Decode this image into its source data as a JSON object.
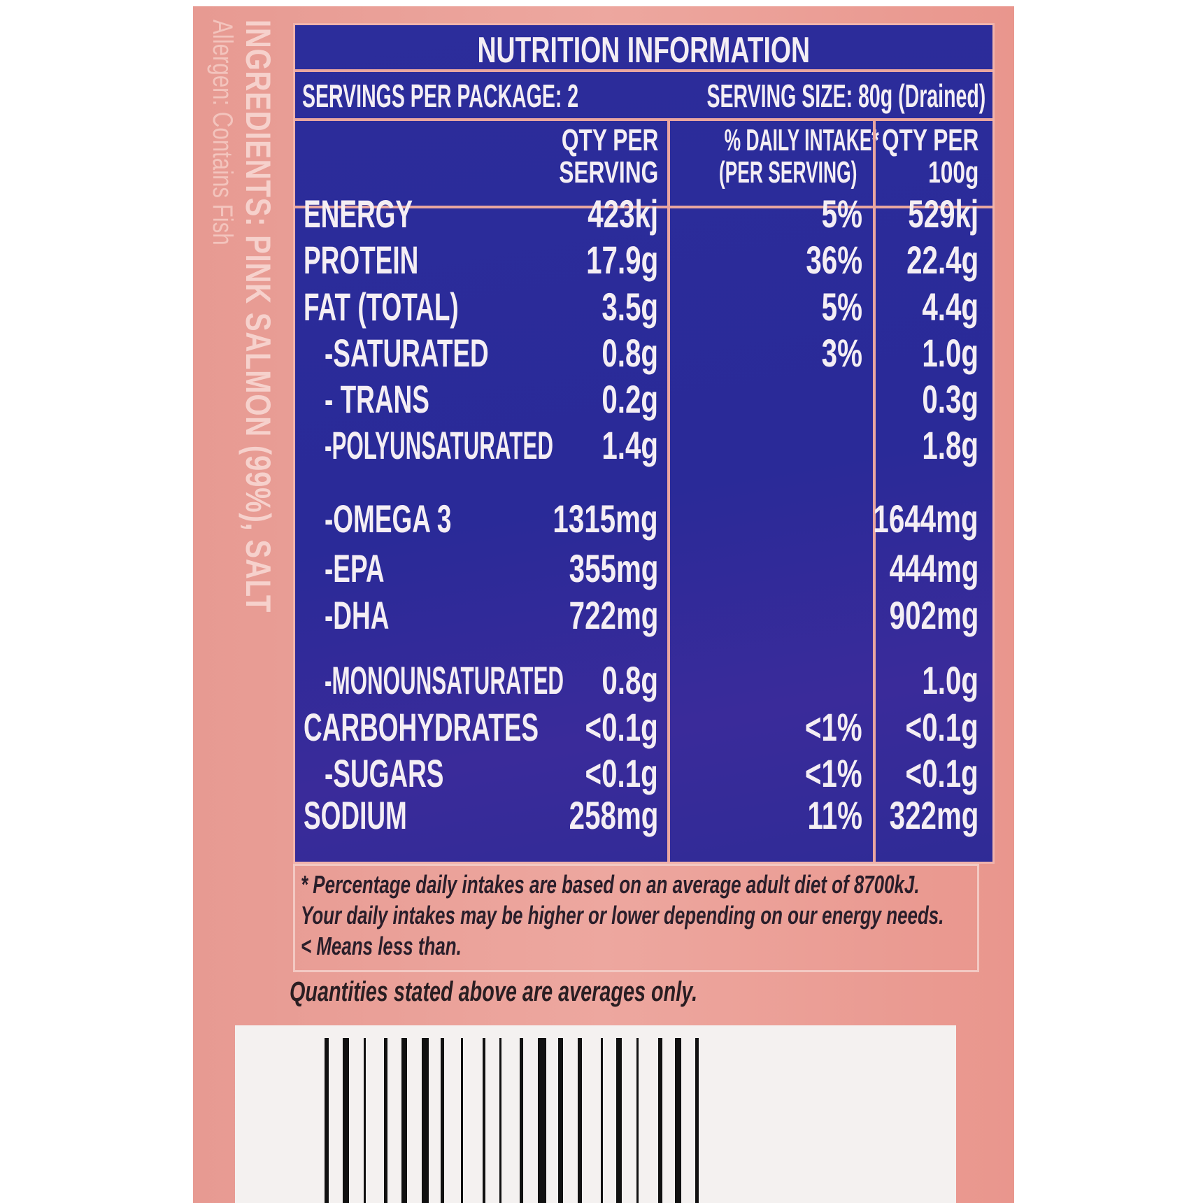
{
  "side": {
    "ingredients": "INGREDIENTS: PINK SALMON (99%), SALT",
    "allergen": "Allergen: Contains Fish"
  },
  "panel": {
    "title": "NUTRITION INFORMATION",
    "servings_per_package": "SERVINGS PER PACKAGE: 2",
    "serving_size": "SERVING SIZE: 80g (Drained)",
    "headers": {
      "per_serving": [
        "QTY PER",
        "SERVING"
      ],
      "daily_intake": [
        "% DAILY INTAKE*",
        "(PER SERVING)"
      ],
      "per_100g": [
        "QTY PER",
        "100g"
      ]
    },
    "rows": [
      {
        "label": "ENERGY",
        "serving": "423kj",
        "di": "5%",
        "per100": "529kj"
      },
      {
        "label": "PROTEIN",
        "serving": "17.9g",
        "di": "36%",
        "per100": "22.4g"
      },
      {
        "label": "FAT (TOTAL)",
        "serving": "3.5g",
        "di": "5%",
        "per100": "4.4g"
      },
      {
        "label": "-SATURATED",
        "serving": "0.8g",
        "di": "3%",
        "per100": "1.0g"
      },
      {
        "label": "- TRANS",
        "serving": "0.2g",
        "di": "",
        "per100": "0.3g"
      },
      {
        "label": "-POLYUNSATURATED",
        "serving": "1.4g",
        "di": "",
        "per100": "1.8g"
      },
      {
        "label": "-OMEGA 3",
        "serving": "1315mg",
        "di": "",
        "per100": "1644mg"
      },
      {
        "label": "-EPA",
        "serving": "355mg",
        "di": "",
        "per100": "444mg"
      },
      {
        "label": "-DHA",
        "serving": "722mg",
        "di": "",
        "per100": "902mg"
      },
      {
        "label": "-MONOUNSATURATED",
        "serving": "0.8g",
        "di": "",
        "per100": "1.0g"
      },
      {
        "label": "CARBOHYDRATES",
        "serving": "<0.1g",
        "di": "<1%",
        "per100": "<0.1g"
      },
      {
        "label": "-SUGARS",
        "serving": "<0.1g",
        "di": "<1%",
        "per100": "<0.1g"
      },
      {
        "label": "SODIUM",
        "serving": "258mg",
        "di": "11%",
        "per100": "322mg"
      }
    ]
  },
  "footnote": [
    "* Percentage daily intakes are based on an average adult diet of 8700kJ.",
    "Your daily intakes may be higher or lower depending on our energy needs.",
    "< Means less than."
  ],
  "averages_note": "Quantities stated above are averages only.",
  "colors": {
    "panel": "#2c2d9b",
    "label": "#eda79f",
    "text": "#f4eef4"
  }
}
